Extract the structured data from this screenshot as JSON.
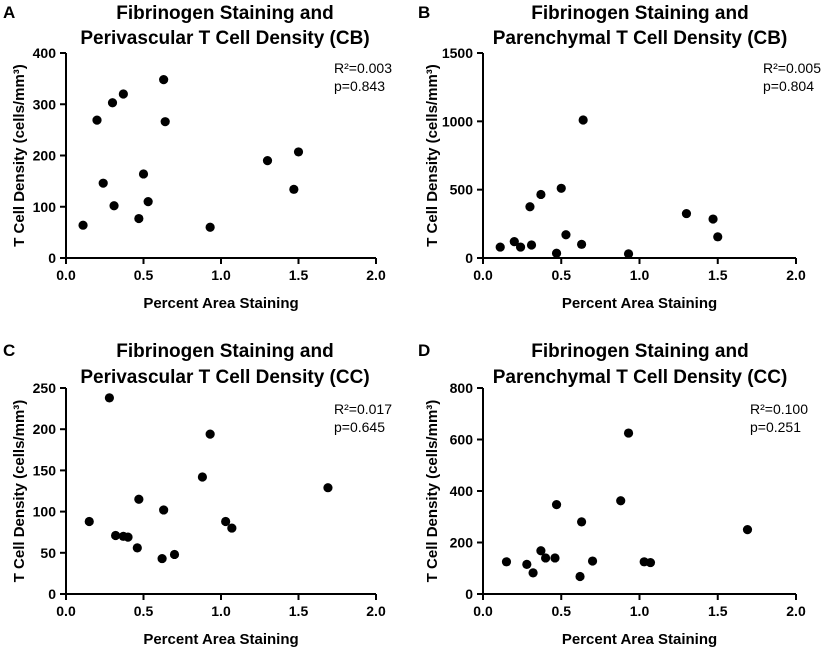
{
  "chart_data": [
    {
      "type": "scatter",
      "panel_label": "A",
      "title_lines": [
        "Fibrinogen Staining and",
        "Perivascular T Cell Density (CB)"
      ],
      "xlabel": "Percent Area Staining",
      "ylabel": "T Cell Density (cells/mm³)",
      "xlim": [
        0,
        2.0
      ],
      "ylim": [
        0,
        400
      ],
      "x_ticks": [
        "0.0",
        "0.5",
        "1.0",
        "1.5",
        "2.0"
      ],
      "y_ticks": [
        "0",
        "100",
        "200",
        "300",
        "400"
      ],
      "annotation": {
        "r2": "R²=0.003",
        "p": "p=0.843"
      },
      "points": [
        {
          "x": 0.11,
          "y": 64
        },
        {
          "x": 0.2,
          "y": 269
        },
        {
          "x": 0.24,
          "y": 146
        },
        {
          "x": 0.3,
          "y": 303
        },
        {
          "x": 0.31,
          "y": 102
        },
        {
          "x": 0.37,
          "y": 320
        },
        {
          "x": 0.47,
          "y": 77
        },
        {
          "x": 0.5,
          "y": 164
        },
        {
          "x": 0.53,
          "y": 110
        },
        {
          "x": 0.63,
          "y": 348
        },
        {
          "x": 0.64,
          "y": 266
        },
        {
          "x": 0.93,
          "y": 60
        },
        {
          "x": 1.3,
          "y": 190
        },
        {
          "x": 1.47,
          "y": 134
        },
        {
          "x": 1.5,
          "y": 207
        }
      ]
    },
    {
      "type": "scatter",
      "panel_label": "B",
      "title_lines": [
        "Fibrinogen Staining and",
        "Parenchymal T Cell Density (CB)"
      ],
      "xlabel": "Percent Area Staining",
      "ylabel": "T Cell Density (cells/mm³)",
      "xlim": [
        0,
        2.0
      ],
      "ylim": [
        0,
        1500
      ],
      "x_ticks": [
        "0.0",
        "0.5",
        "1.0",
        "1.5",
        "2.0"
      ],
      "y_ticks": [
        "0",
        "500",
        "1000",
        "1500"
      ],
      "annotation": {
        "r2": "R²=0.005",
        "p": "p=0.804"
      },
      "points": [
        {
          "x": 0.11,
          "y": 80
        },
        {
          "x": 0.2,
          "y": 120
        },
        {
          "x": 0.24,
          "y": 80
        },
        {
          "x": 0.3,
          "y": 375
        },
        {
          "x": 0.31,
          "y": 95
        },
        {
          "x": 0.37,
          "y": 465
        },
        {
          "x": 0.47,
          "y": 35
        },
        {
          "x": 0.5,
          "y": 510
        },
        {
          "x": 0.53,
          "y": 170
        },
        {
          "x": 0.63,
          "y": 100
        },
        {
          "x": 0.64,
          "y": 1010
        },
        {
          "x": 0.93,
          "y": 30
        },
        {
          "x": 1.3,
          "y": 325
        },
        {
          "x": 1.47,
          "y": 285
        },
        {
          "x": 1.5,
          "y": 155
        }
      ]
    },
    {
      "type": "scatter",
      "panel_label": "C",
      "title_lines": [
        "Fibrinogen Staining and",
        "Perivascular T Cell Density (CC)"
      ],
      "xlabel": "Percent Area Staining",
      "ylabel": "T Cell Density (cells/mm³)",
      "xlim": [
        0,
        2.0
      ],
      "ylim": [
        0,
        250
      ],
      "x_ticks": [
        "0.0",
        "0.5",
        "1.0",
        "1.5",
        "2.0"
      ],
      "y_ticks": [
        "0",
        "50",
        "100",
        "150",
        "200",
        "250"
      ],
      "annotation": {
        "r2": "R²=0.017",
        "p": "p=0.645"
      },
      "points": [
        {
          "x": 0.15,
          "y": 88
        },
        {
          "x": 0.28,
          "y": 238
        },
        {
          "x": 0.32,
          "y": 71
        },
        {
          "x": 0.37,
          "y": 70
        },
        {
          "x": 0.4,
          "y": 69
        },
        {
          "x": 0.46,
          "y": 56
        },
        {
          "x": 0.47,
          "y": 115
        },
        {
          "x": 0.62,
          "y": 43
        },
        {
          "x": 0.63,
          "y": 102
        },
        {
          "x": 0.7,
          "y": 48
        },
        {
          "x": 0.88,
          "y": 142
        },
        {
          "x": 0.93,
          "y": 194
        },
        {
          "x": 1.03,
          "y": 88
        },
        {
          "x": 1.07,
          "y": 80
        },
        {
          "x": 1.69,
          "y": 129
        }
      ]
    },
    {
      "type": "scatter",
      "panel_label": "D",
      "title_lines": [
        "Fibrinogen Staining and",
        "Parenchymal T Cell Density (CC)"
      ],
      "xlabel": "Percent Area Staining",
      "ylabel": "T Cell Density (cells/mm³)",
      "xlim": [
        0,
        2.0
      ],
      "ylim": [
        0,
        800
      ],
      "x_ticks": [
        "0.0",
        "0.5",
        "1.0",
        "1.5",
        "2.0"
      ],
      "y_ticks": [
        "0",
        "200",
        "400",
        "600",
        "800"
      ],
      "annotation": {
        "r2": "R²=0.100",
        "p": "p=0.251"
      },
      "points": [
        {
          "x": 0.15,
          "y": 125
        },
        {
          "x": 0.28,
          "y": 115
        },
        {
          "x": 0.32,
          "y": 82
        },
        {
          "x": 0.37,
          "y": 168
        },
        {
          "x": 0.4,
          "y": 140
        },
        {
          "x": 0.46,
          "y": 140
        },
        {
          "x": 0.47,
          "y": 347
        },
        {
          "x": 0.62,
          "y": 68
        },
        {
          "x": 0.63,
          "y": 280
        },
        {
          "x": 0.7,
          "y": 128
        },
        {
          "x": 0.88,
          "y": 362
        },
        {
          "x": 0.93,
          "y": 625
        },
        {
          "x": 1.03,
          "y": 125
        },
        {
          "x": 1.07,
          "y": 122
        },
        {
          "x": 1.69,
          "y": 250
        }
      ]
    }
  ]
}
